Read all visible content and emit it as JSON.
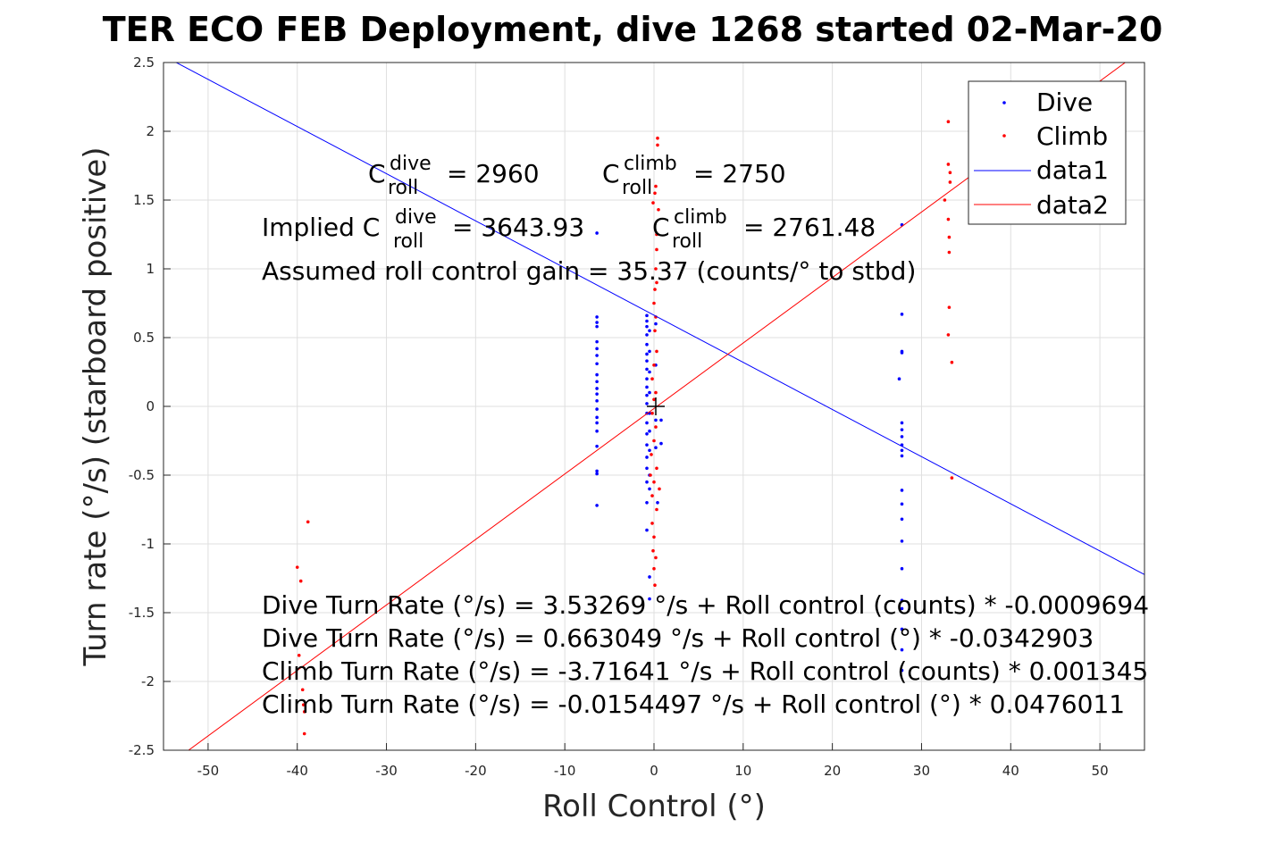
{
  "chart_data": {
    "type": "scatter",
    "title": "TER ECO FEB Deployment, dive 1268 started 02-Mar-20",
    "xlabel": "Roll Control (°)",
    "ylabel": "Turn rate (°/s) (starboard positive)",
    "xlim": [
      -55,
      55
    ],
    "ylim": [
      -2.5,
      2.5
    ],
    "xticks": [
      "-50",
      "-40",
      "-30",
      "-20",
      "-10",
      "0",
      "10",
      "20",
      "30",
      "40",
      "50"
    ],
    "yticks": [
      "2.5",
      "2",
      "1.5",
      "1",
      "0.5",
      "0",
      "-0.5",
      "-1",
      "-1.5",
      "-2",
      "-2.5"
    ],
    "grid": true,
    "legend_position": "top-right",
    "series": [
      {
        "name": "Dive",
        "kind": "points",
        "color": "#0000ff",
        "points": [
          [
            -6.4,
            1.26
          ],
          [
            -6.4,
            0.65
          ],
          [
            -6.4,
            0.61
          ],
          [
            -6.4,
            0.58
          ],
          [
            -6.4,
            0.47
          ],
          [
            -6.4,
            0.42
          ],
          [
            -6.4,
            0.37
          ],
          [
            -6.4,
            0.31
          ],
          [
            -6.4,
            0.23
          ],
          [
            -6.4,
            0.18
          ],
          [
            -6.4,
            0.13
          ],
          [
            -6.4,
            0.09
          ],
          [
            -6.4,
            0.04
          ],
          [
            -6.4,
            -0.02
          ],
          [
            -6.4,
            -0.08
          ],
          [
            -6.4,
            -0.12
          ],
          [
            -6.4,
            -0.18
          ],
          [
            -6.4,
            -0.29
          ],
          [
            -6.4,
            -0.47
          ],
          [
            -6.4,
            -0.49
          ],
          [
            -6.4,
            -0.72
          ],
          [
            -0.8,
            0.66
          ],
          [
            -0.8,
            0.62
          ],
          [
            -0.8,
            0.58
          ],
          [
            -0.8,
            0.52
          ],
          [
            -0.8,
            0.45
          ],
          [
            -0.8,
            0.38
          ],
          [
            -0.8,
            0.33
          ],
          [
            -0.8,
            0.27
          ],
          [
            -0.8,
            0.2
          ],
          [
            -0.8,
            0.14
          ],
          [
            -0.8,
            0.08
          ],
          [
            -0.8,
            0.02
          ],
          [
            -0.8,
            -0.05
          ],
          [
            -0.8,
            -0.12
          ],
          [
            -0.8,
            -0.2
          ],
          [
            -0.8,
            -0.28
          ],
          [
            -0.8,
            -0.37
          ],
          [
            -0.8,
            -0.45
          ],
          [
            -0.8,
            -0.55
          ],
          [
            -0.8,
            -0.7
          ],
          [
            -0.8,
            -0.9
          ],
          [
            -0.5,
            0.55
          ],
          [
            -0.5,
            0.4
          ],
          [
            -0.5,
            0.25
          ],
          [
            -0.5,
            0.1
          ],
          [
            -0.5,
            -0.05
          ],
          [
            -0.5,
            -0.18
          ],
          [
            -0.5,
            -0.32
          ],
          [
            -0.5,
            -0.5
          ],
          [
            -0.5,
            -0.6
          ],
          [
            -0.5,
            -1.24
          ],
          [
            -0.5,
            -1.4
          ],
          [
            0.2,
            0.6
          ],
          [
            0.2,
            0.3
          ],
          [
            0.2,
            -0.1
          ],
          [
            0.2,
            -0.3
          ],
          [
            0.4,
            -0.7
          ],
          [
            0.8,
            -0.27
          ],
          [
            0.8,
            -0.1
          ],
          [
            27.5,
            0.2
          ],
          [
            27.8,
            1.32
          ],
          [
            27.8,
            0.67
          ],
          [
            27.8,
            0.4
          ],
          [
            27.8,
            0.39
          ],
          [
            27.8,
            -0.12
          ],
          [
            27.8,
            -0.17
          ],
          [
            27.8,
            -0.22
          ],
          [
            27.8,
            -0.28
          ],
          [
            27.8,
            -0.32
          ],
          [
            27.8,
            -0.36
          ],
          [
            27.8,
            -0.61
          ],
          [
            27.8,
            -0.71
          ],
          [
            27.8,
            -0.82
          ],
          [
            27.8,
            -0.98
          ],
          [
            27.8,
            -1.18
          ],
          [
            27.8,
            -1.41
          ],
          [
            27.8,
            -1.47
          ],
          [
            27.8,
            -1.62
          ],
          [
            27.8,
            -1.77
          ],
          [
            27.8,
            -1.92
          ]
        ]
      },
      {
        "name": "Climb",
        "kind": "points",
        "color": "#ff0000",
        "points": [
          [
            -40,
            -1.17
          ],
          [
            -39.6,
            -1.27
          ],
          [
            -38.8,
            -0.84
          ],
          [
            -39.8,
            -1.81
          ],
          [
            -39.4,
            -2.06
          ],
          [
            -39.3,
            -2.17
          ],
          [
            -39.2,
            -2.22
          ],
          [
            -39.2,
            -2.38
          ],
          [
            0.4,
            1.95
          ],
          [
            0.4,
            1.9
          ],
          [
            0.2,
            1.6
          ],
          [
            0.1,
            1.55
          ],
          [
            -0.1,
            1.48
          ],
          [
            0.5,
            1.43
          ],
          [
            0.3,
            1.25
          ],
          [
            0.3,
            1.14
          ],
          [
            0.2,
            1.0
          ],
          [
            0.1,
            0.85
          ],
          [
            0.3,
            0.9
          ],
          [
            0.0,
            0.75
          ],
          [
            0.2,
            0.65
          ],
          [
            0.1,
            0.55
          ],
          [
            0.3,
            0.4
          ],
          [
            0.0,
            0.3
          ],
          [
            -0.2,
            0.2
          ],
          [
            0.2,
            0.1
          ],
          [
            0.0,
            0.05
          ],
          [
            -0.2,
            -0.05
          ],
          [
            0.2,
            -0.15
          ],
          [
            0.0,
            -0.25
          ],
          [
            -0.3,
            -0.35
          ],
          [
            0.3,
            -0.45
          ],
          [
            0.0,
            -0.55
          ],
          [
            -0.2,
            -0.65
          ],
          [
            0.3,
            -0.75
          ],
          [
            -0.2,
            -0.85
          ],
          [
            0.0,
            -0.95
          ],
          [
            -0.1,
            -1.05
          ],
          [
            0.2,
            -1.1
          ],
          [
            0.0,
            -1.18
          ],
          [
            0.1,
            -1.3
          ],
          [
            -0.4,
            -0.5
          ],
          [
            0.6,
            -0.6
          ],
          [
            32.6,
            1.5
          ],
          [
            33.0,
            2.07
          ],
          [
            33.0,
            1.76
          ],
          [
            33.2,
            1.7
          ],
          [
            33.2,
            1.63
          ],
          [
            33.0,
            1.36
          ],
          [
            33.1,
            1.23
          ],
          [
            33.1,
            1.12
          ],
          [
            33.1,
            0.72
          ],
          [
            33.0,
            0.52
          ],
          [
            33.4,
            0.32
          ],
          [
            33.4,
            -0.52
          ]
        ]
      },
      {
        "name": "data1",
        "kind": "line",
        "color": "#0000ff",
        "points": [
          [
            -55,
            2.549
          ],
          [
            55,
            -1.223
          ]
        ]
      },
      {
        "name": "data2",
        "kind": "line",
        "color": "#ff0000",
        "points": [
          [
            -55,
            -2.634
          ],
          [
            55,
            2.603
          ]
        ]
      }
    ],
    "marker": [
      0.2,
      0.0
    ]
  },
  "annotations": {
    "c_roll": "C",
    "roll_sub": "roll",
    "dive_sup": "dive",
    "climb_sup": "climb",
    "dive_value": "= 2960",
    "climb_value": "= 2750",
    "implied_prefix": "Implied C",
    "implied_dive_value": "= 3643.93",
    "implied_climb_value": "= 2761.48",
    "assumed_gain": "Assumed roll control gain = 35.37 (counts/° to stbd)",
    "eq1": "Dive Turn Rate (°/s) = 3.53269 °/s + Roll control (counts) * -0.0009694",
    "eq2": "Dive Turn Rate (°/s) = 0.663049 °/s + Roll control (°) * -0.0342903",
    "eq3": "Climb Turn Rate (°/s) = -3.71641 °/s + Roll control (counts) * 0.001345",
    "eq4": "Climb Turn Rate (°/s) = -0.0154497 °/s + Roll control (°) * 0.0476011"
  },
  "legend": {
    "items": [
      "Dive",
      "Climb",
      "data1",
      "data2"
    ]
  }
}
